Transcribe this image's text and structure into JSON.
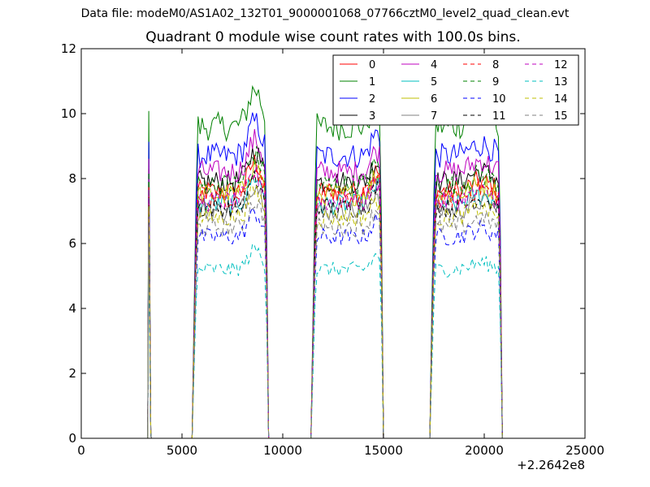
{
  "header": {
    "file_title": "Data file: modeM0/AS1A02_132T01_9000001068_07766cztM0_level2_quad_clean.evt"
  },
  "chart_data": {
    "type": "line",
    "title": "Quadrant 0 module wise count rates with 100.0s bins.",
    "xlabel": "",
    "ylabel": "",
    "xlim": [
      0,
      25000
    ],
    "ylim": [
      0,
      12
    ],
    "x_ticks": [
      0,
      5000,
      10000,
      15000,
      20000,
      25000
    ],
    "x_tick_labels": [
      "0",
      "5000",
      "10000",
      "15000",
      "20000",
      "25000"
    ],
    "y_ticks": [
      0,
      2,
      4,
      6,
      8,
      10,
      12
    ],
    "y_tick_labels": [
      "0",
      "2",
      "4",
      "6",
      "8",
      "10",
      "12"
    ],
    "x_offset_label": "+2.2642e8",
    "legend_position": "top-right",
    "legend_columns": 4,
    "grid": false,
    "segments": [
      {
        "x_start": 3350,
        "x_end": 3450,
        "peak_only": true
      },
      {
        "x_start": 5500,
        "x_end": 9300
      },
      {
        "x_start": 11400,
        "x_end": 15000
      },
      {
        "x_start": 17300,
        "x_end": 20900
      }
    ],
    "series": [
      {
        "name": "0",
        "color": "#ff0000",
        "dash": "solid",
        "level": 7.6
      },
      {
        "name": "1",
        "color": "#008000",
        "dash": "solid",
        "level": 9.6
      },
      {
        "name": "2",
        "color": "#0000ff",
        "dash": "solid",
        "level": 8.7
      },
      {
        "name": "3",
        "color": "#000000",
        "dash": "solid",
        "level": 7.9
      },
      {
        "name": "4",
        "color": "#bf00bf",
        "dash": "solid",
        "level": 8.2
      },
      {
        "name": "5",
        "color": "#00bfbf",
        "dash": "solid",
        "level": 7.2
      },
      {
        "name": "6",
        "color": "#bfbf00",
        "dash": "solid",
        "level": 7.5
      },
      {
        "name": "7",
        "color": "#808080",
        "dash": "solid",
        "level": 7.0
      },
      {
        "name": "8",
        "color": "#ff0000",
        "dash": "dashed",
        "level": 7.4
      },
      {
        "name": "9",
        "color": "#008000",
        "dash": "dashed",
        "level": 7.8
      },
      {
        "name": "10",
        "color": "#0000ff",
        "dash": "dashed",
        "level": 6.2
      },
      {
        "name": "11",
        "color": "#000000",
        "dash": "dashed",
        "level": 7.1
      },
      {
        "name": "12",
        "color": "#bf00bf",
        "dash": "dashed",
        "level": 7.3
      },
      {
        "name": "13",
        "color": "#00bfbf",
        "dash": "dashed",
        "level": 5.2
      },
      {
        "name": "14",
        "color": "#bfbf00",
        "dash": "dashed",
        "level": 6.8
      },
      {
        "name": "15",
        "color": "#808080",
        "dash": "dashed",
        "level": 6.5
      }
    ]
  }
}
